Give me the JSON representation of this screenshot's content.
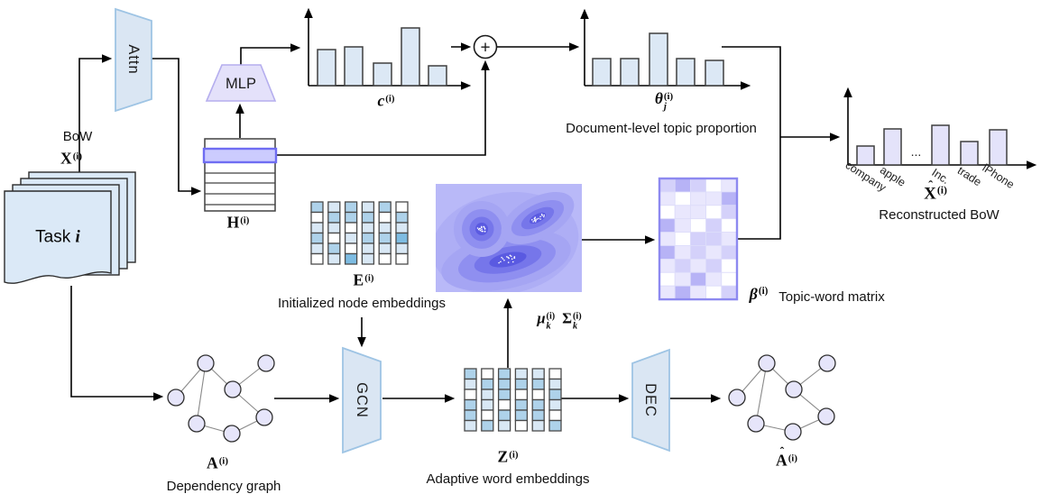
{
  "sum_symbol": "+",
  "colors": {
    "block_blue_fill": "#dae6f3",
    "block_blue_border": "#9ec4e4",
    "mlp_fill": "#e4e1fa",
    "mlp_border": "#b5aeee",
    "bar_blue": "#dce8f5",
    "bar_lavender": "#e4e3fa",
    "bar_stroke": "#3f3f3f",
    "page_fill": "#dbe9f7",
    "highlight_fill": "#ccccfe",
    "highlight_border": "#6f6df2",
    "node_fill": "#e6e5fa",
    "grid_palette": [
      "#ffffff",
      "#d9e8f5",
      "#aed2ea",
      "#7ebce2"
    ],
    "beta_palette": [
      "#ffffff",
      "#e9e7fd",
      "#d4d1fa",
      "#b7b3f6"
    ],
    "contour_bg": "#b9b9f8",
    "contour_bands": [
      "#aeaef5",
      "#a5a5f3",
      "#8f8ff0",
      "#7676ea",
      "#5a5ae1"
    ]
  },
  "blocks": {
    "attn": "Attn",
    "mlp": "MLP",
    "gcn": "GCN",
    "dec": "DEC"
  },
  "labels": {
    "bow": "BoW",
    "x_in": {
      "base": "X",
      "bold": true,
      "sup": "(i)"
    },
    "task": {
      "pre": "Task ",
      "base": "i",
      "italic": true
    },
    "h": {
      "base": "H",
      "bold": true,
      "sup": "(i)"
    },
    "c": {
      "base": "c",
      "bold": true,
      "italic": true,
      "sup": "(i)"
    },
    "theta": {
      "base": "θ",
      "bold": true,
      "italic": true,
      "sub": "j",
      "sup": "(i)"
    },
    "x_hat": {
      "base": "X",
      "bold": true,
      "hat": true,
      "sup": "(i)"
    },
    "e": {
      "base": "E",
      "bold": true,
      "sup": "(i)"
    },
    "mu": {
      "base": "μ",
      "bold": true,
      "italic": true,
      "sub": "k",
      "sup": "(i)"
    },
    "sigma": {
      "base": "Σ",
      "bold": true,
      "sub": "k",
      "sup": "(i)"
    },
    "beta": {
      "base": "β",
      "bold": true,
      "italic": true,
      "sup": "(i)"
    },
    "z": {
      "base": "Z",
      "bold": true,
      "sup": "(i)"
    },
    "a": {
      "base": "A",
      "bold": true,
      "sup": "(i)"
    },
    "a_hat": {
      "base": "A",
      "bold": true,
      "hat": true,
      "sup": "(i)"
    }
  },
  "captions": {
    "doc_topic": "Document-level topic proportion",
    "reconstructed": "Reconstructed BoW",
    "init_embed": "Initialized node embeddings",
    "adaptive_embed": "Adaptive word embeddings",
    "dep_graph": "Dependency graph",
    "topic_word": "Topic-word matrix"
  },
  "charts": {
    "c": {
      "type": "bar",
      "values": [
        40,
        43,
        25,
        64,
        22
      ]
    },
    "theta": {
      "type": "bar",
      "values": [
        30,
        30,
        58,
        30,
        28
      ]
    },
    "reconstructed": {
      "type": "bar",
      "categories": [
        "company",
        "apple",
        "...",
        "Inc.",
        "trade",
        "iPhone"
      ],
      "values": [
        21,
        40,
        null,
        44,
        26,
        39
      ]
    }
  },
  "grids": {
    "E": {
      "columns": [
        [
          2,
          0,
          1,
          2,
          1,
          0
        ],
        [
          1,
          2,
          1,
          0,
          2,
          1
        ],
        [
          2,
          2,
          0,
          1,
          0,
          3
        ],
        [
          1,
          2,
          1,
          2,
          1,
          1
        ],
        [
          2,
          0,
          1,
          2,
          1,
          0
        ],
        [
          0,
          2,
          1,
          3,
          1,
          0
        ]
      ]
    },
    "Z": {
      "columns": [
        [
          2,
          1,
          0,
          2,
          2,
          1
        ],
        [
          0,
          2,
          1,
          1,
          0,
          2
        ],
        [
          2,
          2,
          2,
          0,
          2,
          1
        ],
        [
          1,
          2,
          0,
          2,
          2,
          0
        ],
        [
          1,
          2,
          0,
          2,
          2,
          1
        ],
        [
          0,
          1,
          2,
          1,
          0,
          2
        ]
      ]
    },
    "beta": {
      "rows": [
        [
          2,
          3,
          2,
          0,
          1
        ],
        [
          1,
          0,
          1,
          1,
          3
        ],
        [
          0,
          1,
          1,
          0,
          2
        ],
        [
          3,
          1,
          0,
          2,
          0
        ],
        [
          1,
          0,
          2,
          2,
          1
        ],
        [
          3,
          1,
          2,
          1,
          2
        ],
        [
          1,
          2,
          1,
          2,
          0
        ],
        [
          0,
          1,
          3,
          1,
          0
        ],
        [
          1,
          3,
          1,
          0,
          2
        ]
      ]
    }
  }
}
